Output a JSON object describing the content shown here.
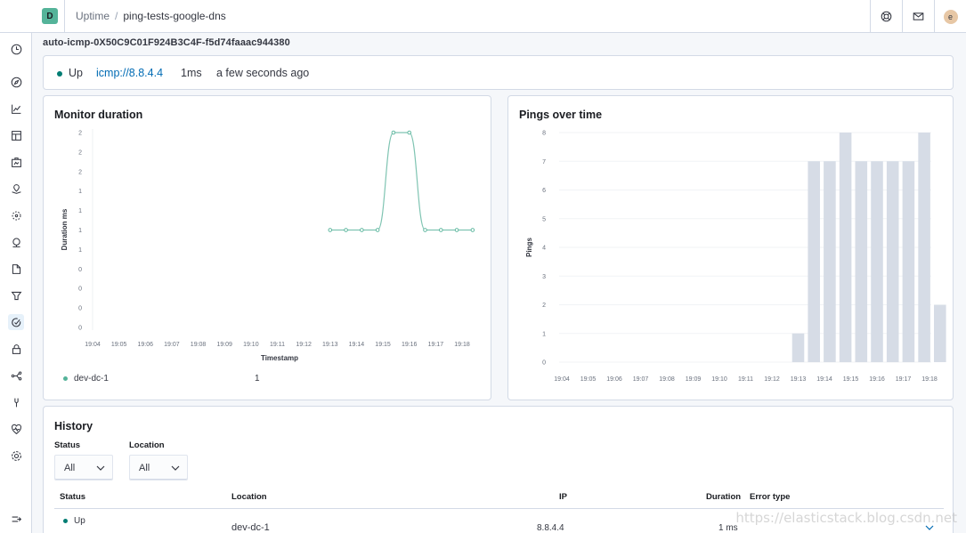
{
  "header": {
    "space_initial": "D",
    "breadcrumb": [
      "Uptime",
      "/",
      "ping-tests-google-dns"
    ],
    "avatar_initial": "e"
  },
  "sidebar": {
    "icons": [
      "clock-icon",
      "compass-icon",
      "visualize-icon",
      "dashboard-icon",
      "canvas-icon",
      "maps-icon",
      "ml-icon",
      "infra-icon",
      "logs-icon",
      "apm-icon",
      "uptime-icon",
      "siem-icon",
      "graph-icon",
      "dev-tools-icon",
      "stack-monitoring-icon",
      "management-icon"
    ],
    "collapse_icon": "collapse-icon"
  },
  "monitor": {
    "id": "auto-icmp-0X50C9C01F924B3C4F-f5d74faaac944380",
    "status": "Up",
    "url": "icmp://8.8.4.4",
    "duration": "1ms",
    "last_checked": "a few seconds ago"
  },
  "duration_chart": {
    "title": "Monitor duration",
    "ylabel": "Duration ms",
    "xlabel": "Timestamp",
    "legend_name": "dev-dc-1",
    "legend_value": "1"
  },
  "pings_chart": {
    "title": "Pings over time",
    "ylabel": "Pings"
  },
  "chart_data": [
    {
      "type": "line",
      "title": "Monitor duration",
      "xlabel": "Timestamp",
      "ylabel": "Duration ms",
      "x_ticks": [
        "19:04",
        "19:05",
        "19:06",
        "19:07",
        "19:08",
        "19:09",
        "19:10",
        "19:11",
        "19:12",
        "19:13",
        "19:14",
        "19:15",
        "19:16",
        "19:17",
        "19:18"
      ],
      "y_ticks": [
        "0",
        "0",
        "0",
        "0",
        "1",
        "1",
        "1",
        "1",
        "2",
        "2",
        "2"
      ],
      "series": [
        {
          "name": "dev-dc-1",
          "x": [
            "19:13",
            "19:13.6",
            "19:14.2",
            "19:14.8",
            "19:15.4",
            "19:16",
            "19:16.6",
            "19:17.2",
            "19:17.8",
            "19:18.4"
          ],
          "y": [
            1,
            1,
            1,
            1,
            2,
            2,
            1,
            1,
            1,
            1
          ]
        }
      ],
      "ylim": [
        0,
        2
      ]
    },
    {
      "type": "bar",
      "title": "Pings over time",
      "ylabel": "Pings",
      "x_ticks": [
        "19:04",
        "19:05",
        "19:06",
        "19:07",
        "19:08",
        "19:09",
        "19:10",
        "19:11",
        "19:12",
        "19:13",
        "19:14",
        "19:15",
        "19:16",
        "19:17",
        "19:18"
      ],
      "y_ticks": [
        "0",
        "1",
        "2",
        "3",
        "4",
        "5",
        "6",
        "7",
        "8"
      ],
      "bars_start": "19:13",
      "values": [
        1,
        7,
        7,
        8,
        7,
        7,
        7,
        7,
        8,
        2
      ],
      "ylim": [
        0,
        8
      ]
    }
  ],
  "history": {
    "title": "History",
    "filters": [
      {
        "label": "Status",
        "value": "All"
      },
      {
        "label": "Location",
        "value": "All"
      }
    ],
    "columns": [
      "Status",
      "Location",
      "IP",
      "Duration",
      "Error type"
    ],
    "rows": [
      {
        "status": "Up",
        "location": "dev-dc-1",
        "ip": "8.8.4.4",
        "duration": "1 ms",
        "error": ""
      }
    ]
  },
  "watermark": "https://elasticstack.blog.csdn.net",
  "colors": {
    "accent": "#006bb4",
    "status_up": "#017d73",
    "line": "#54b399",
    "bars": "#d6dce6"
  }
}
